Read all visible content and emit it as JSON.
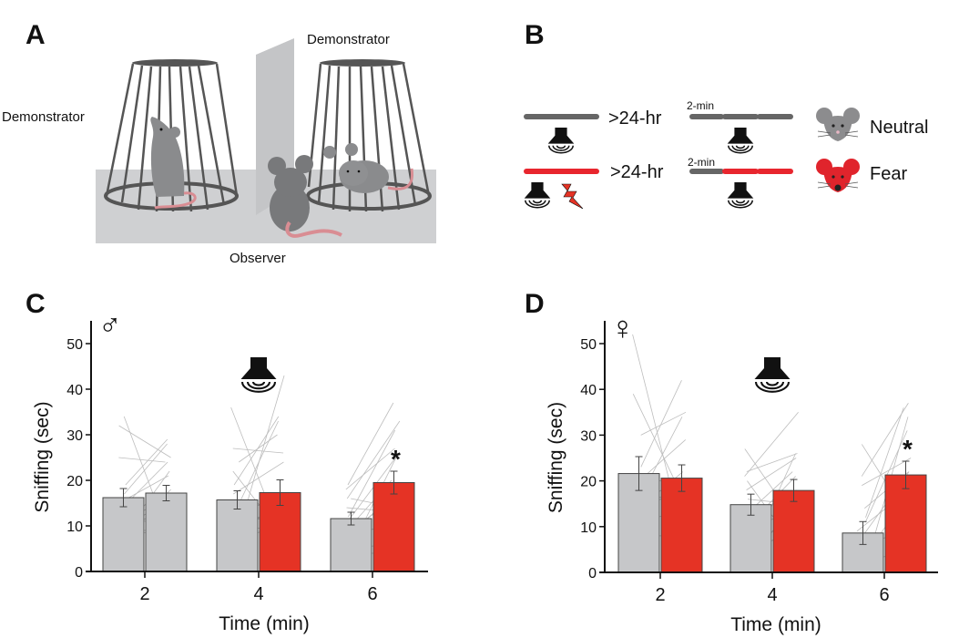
{
  "panels": {
    "A": {
      "letter": "A",
      "labels": {
        "demonstrator_left": "Demonstrator",
        "demonstrator_right": "Demonstrator",
        "observer": "Observer"
      }
    },
    "B": {
      "letter": "B",
      "rows": [
        {
          "interval": ">24-hr",
          "segment_label": "2-min",
          "legend": "Neutral",
          "condition_color": "#666666",
          "test_colors": [
            "#666666",
            "#666666",
            "#666666"
          ],
          "shock": false,
          "face_color": "#8c8c8e"
        },
        {
          "interval": ">24-hr",
          "segment_label": "2-min",
          "legend": "Fear",
          "condition_color": "#e8262e",
          "test_colors": [
            "#666666",
            "#e8262e",
            "#e8262e"
          ],
          "shock": true,
          "face_color": "#e0242c"
        }
      ],
      "icons": [
        "speaker-icon",
        "lightning-icon",
        "neutral-mouse-icon",
        "fear-mouse-icon"
      ]
    },
    "C": {
      "letter": "C",
      "sex_symbol": "♂"
    },
    "D": {
      "letter": "D",
      "sex_symbol": "♀"
    }
  },
  "colors": {
    "neutral_bar": "#c6c7c9",
    "fear_bar": "#e53325",
    "individual_line": "#bdbdbd"
  },
  "chart_data": [
    {
      "type": "bar",
      "panel": "C",
      "sex": "male",
      "xlabel": "Time (min)",
      "ylabel": "Sniffing (sec)",
      "ylim": [
        0,
        55
      ],
      "yticks": [
        0,
        10,
        20,
        30,
        40,
        50
      ],
      "categories": [
        "2",
        "4",
        "6"
      ],
      "series": [
        {
          "name": "Neutral",
          "values": [
            16.2,
            15.7,
            11.6
          ],
          "errors": [
            2.0,
            2.0,
            1.4
          ]
        },
        {
          "name": "Fear",
          "values": [
            17.2,
            17.3,
            19.5
          ],
          "errors": [
            1.7,
            2.8,
            2.5
          ],
          "colors": [
            "#c6c7c9",
            "#e53325",
            "#e53325"
          ]
        }
      ],
      "annotations": [
        {
          "category": "6",
          "text": "*"
        }
      ],
      "stimulus_marker": {
        "category": "4",
        "icon": "speaker-icon"
      },
      "individual_pairs": [
        [
          [
            34,
            8
          ],
          [
            32,
            25
          ],
          [
            25,
            24
          ],
          [
            19,
            29
          ],
          [
            17,
            28
          ],
          [
            15,
            21
          ],
          [
            13,
            24
          ],
          [
            12,
            10
          ],
          [
            10,
            17
          ],
          [
            9,
            15
          ],
          [
            9,
            9
          ],
          [
            8,
            9
          ],
          [
            8,
            18
          ],
          [
            7,
            22
          ]
        ],
        [
          [
            36,
            8
          ],
          [
            27,
            26
          ],
          [
            24,
            30
          ],
          [
            22,
            7
          ],
          [
            19,
            34
          ],
          [
            17,
            24
          ],
          [
            15,
            14
          ],
          [
            13,
            11
          ],
          [
            12,
            33
          ],
          [
            11,
            8
          ],
          [
            10,
            13
          ],
          [
            8,
            16
          ],
          [
            6,
            11
          ],
          [
            5,
            43
          ]
        ],
        [
          [
            19,
            37
          ],
          [
            18,
            27
          ],
          [
            16,
            33
          ],
          [
            16,
            14
          ],
          [
            14,
            13
          ],
          [
            12,
            31
          ],
          [
            11,
            25
          ],
          [
            10,
            20
          ],
          [
            9,
            16
          ],
          [
            8,
            18
          ],
          [
            7,
            11
          ],
          [
            6,
            26
          ],
          [
            5,
            6
          ],
          [
            4,
            4
          ]
        ]
      ]
    },
    {
      "type": "bar",
      "panel": "D",
      "sex": "female",
      "xlabel": "Time (min)",
      "ylabel": "Sniffing (sec)",
      "ylim": [
        0,
        55
      ],
      "yticks": [
        0,
        10,
        20,
        30,
        40,
        50
      ],
      "categories": [
        "2",
        "4",
        "6"
      ],
      "series": [
        {
          "name": "Neutral",
          "values": [
            21.6,
            14.8,
            8.6
          ],
          "errors": [
            3.7,
            2.3,
            2.5
          ]
        },
        {
          "name": "Fear",
          "values": [
            20.6,
            17.9,
            21.3
          ],
          "errors": [
            2.9,
            2.4,
            3.0
          ],
          "colors": [
            "#e53325",
            "#e53325",
            "#e53325"
          ]
        }
      ],
      "annotations": [
        {
          "category": "6",
          "text": "*"
        }
      ],
      "stimulus_marker": {
        "category": "4",
        "icon": "speaker-icon"
      },
      "individual_pairs": [
        [
          [
            52,
            9
          ],
          [
            39,
            18
          ],
          [
            30,
            35
          ],
          [
            23,
            42
          ],
          [
            21,
            19
          ],
          [
            19,
            29
          ],
          [
            17,
            16
          ],
          [
            15,
            34
          ],
          [
            14,
            22
          ],
          [
            12,
            20
          ],
          [
            10,
            15
          ],
          [
            8,
            8
          ]
        ],
        [
          [
            27,
            11
          ],
          [
            22,
            26
          ],
          [
            21,
            35
          ],
          [
            20,
            6
          ],
          [
            18,
            25
          ],
          [
            16,
            15
          ],
          [
            14,
            22
          ],
          [
            10,
            21
          ],
          [
            8,
            16
          ],
          [
            5,
            26
          ],
          [
            3,
            11
          ],
          [
            0,
            18
          ]
        ],
        [
          [
            28,
            12
          ],
          [
            21,
            37
          ],
          [
            19,
            25
          ],
          [
            14,
            22
          ],
          [
            12,
            36
          ],
          [
            11,
            31
          ],
          [
            9,
            17
          ],
          [
            7,
            22
          ],
          [
            5,
            10
          ],
          [
            3,
            16
          ],
          [
            2,
            5
          ],
          [
            0,
            34
          ]
        ]
      ]
    }
  ]
}
